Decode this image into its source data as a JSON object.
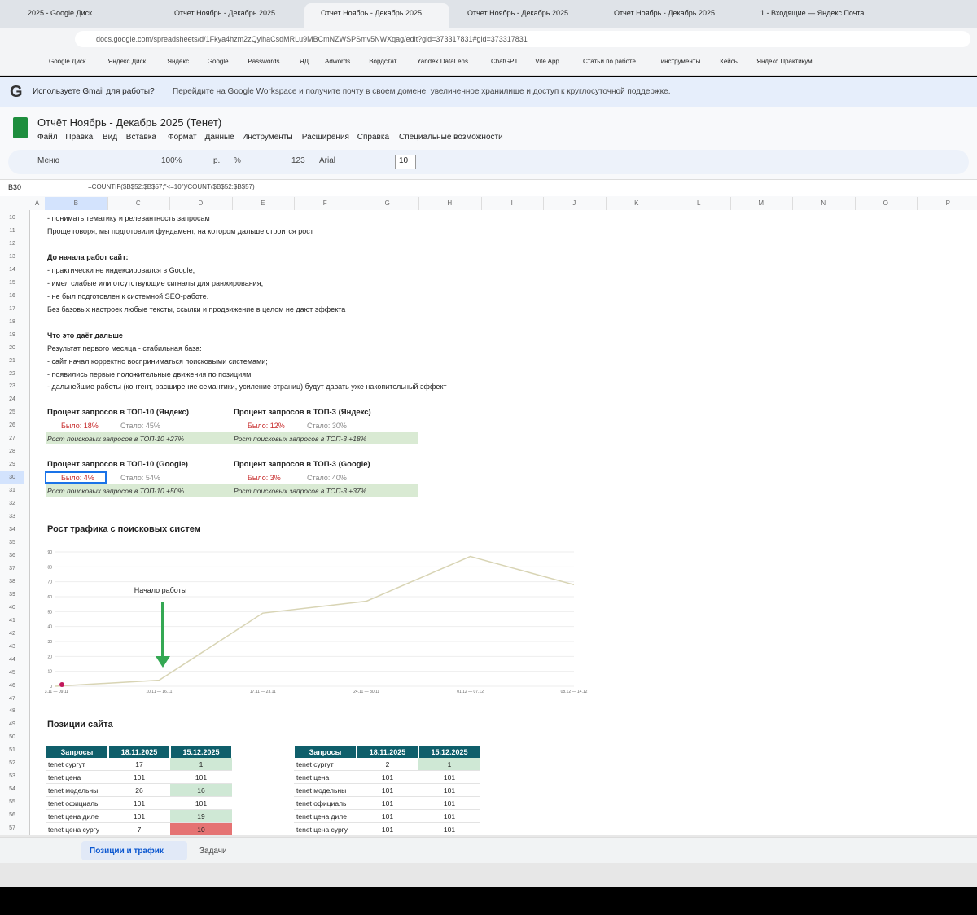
{
  "browser": {
    "tabs": [
      "2025 - Google Диск",
      "Отчет Ноябрь - Декабрь 2025",
      "Отчет Ноябрь - Декабрь 2025",
      "Отчет Ноябрь - Декабрь 2025",
      "Отчет Ноябрь - Декабрь 2025",
      "1 - Входящие — Яндекс Почта"
    ],
    "url": "docs.google.com/spreadsheets/d/1Fkya4hzm2zQyihaCsdMRLu9MBCmNZWSPSmv5NWXqag/edit?gid=373317831#gid=373317831",
    "bookmarks": [
      "Google Диск",
      "Яндекс Диск",
      "Яндекс",
      "Google",
      "Passwords",
      "ЯД",
      "Adwords",
      "Вордстат",
      "Yandex DataLens",
      "ChatGPT",
      "Vite App",
      "Статьи по работе",
      "инструменты",
      "Кейсы",
      "Яндекс Практикум"
    ]
  },
  "banner": {
    "lead": "Используете Gmail для работы?",
    "text": "Перейдите на Google Workspace и получите почту в своем домене, увеличенное хранилище и доступ к круглосуточной поддержке."
  },
  "doc": {
    "title": "Отчёт Ноябрь - Декабрь 2025 (Тенет)",
    "menu": [
      "Файл",
      "Правка",
      "Вид",
      "Вставка",
      "Формат",
      "Данные",
      "Инструменты",
      "Расширения",
      "Справка",
      "Специальные возможности"
    ],
    "toolbar": {
      "search": "Меню",
      "zoom": "100%",
      "currency": "р.",
      "percent": "%",
      "format": "123",
      "font": "Arial",
      "size": "10"
    },
    "cell_ref": "B30",
    "formula": "=COUNTIF($B$52:$B$57;\"<=10\")/COUNT($B$52:$B$57)"
  },
  "sheet": {
    "columns": [
      "A",
      "B",
      "C",
      "D",
      "E",
      "F",
      "G",
      "H",
      "I",
      "J",
      "K",
      "L",
      "M",
      "N",
      "O",
      "P"
    ],
    "row_numbers": [
      10,
      11,
      12,
      13,
      14,
      15,
      16,
      17,
      18,
      19,
      20,
      21,
      22,
      23,
      24,
      25,
      26,
      27,
      28,
      29,
      30,
      31,
      32,
      33,
      34,
      35,
      36,
      37,
      38,
      39,
      40,
      41,
      42,
      43,
      44,
      45,
      46,
      47,
      48,
      49,
      50,
      51,
      52,
      53,
      54,
      55,
      56,
      57
    ],
    "lines": [
      {
        "row": 10,
        "text": "- понимать тематику и релевантность запросам"
      },
      {
        "row": 11,
        "text": "Проще говоря, мы подготовили фундамент, на котором дальше строится рост"
      },
      {
        "row": 13,
        "text": "До начала работ сайт:"
      },
      {
        "row": 14,
        "text": "- практически не индексировался в Google,"
      },
      {
        "row": 15,
        "text": "- имел слабые или отсутствующие сигналы для ранжирования,"
      },
      {
        "row": 16,
        "text": "- не был подготовлен к системной SEO-работе."
      },
      {
        "row": 17,
        "text": "Без базовых настроек любые тексты, ссылки и продвижение в целом не дают эффекта"
      },
      {
        "row": 19,
        "text": "Что это даёт дальше"
      },
      {
        "row": 20,
        "text": "Результат первого месяца - стабильная база:"
      },
      {
        "row": 21,
        "text": "- сайт начал корректно восприниматься поисковыми системами;"
      },
      {
        "row": 22,
        "text": "- появились первые положительные движения по позициям;"
      },
      {
        "row": 23,
        "text": "- дальнейшие работы (контент, расширение семантики, усиление страниц) будут давать уже накопительный эффект"
      }
    ],
    "metrics": [
      {
        "title": "Процент запросов в ТОП-10 (Яндекс)",
        "before": "Было: 18%",
        "after": "Стало: 45%",
        "growth": "Рост поисковых запросов в ТОП-10 +27%"
      },
      {
        "title": "Процент запросов в ТОП-3 (Яндекс)",
        "before": "Было: 12%",
        "after": "Стало: 30%",
        "growth": "Рост поисковых запросов в ТОП-3 +18%"
      },
      {
        "title": "Процент запросов в ТОП-10 (Google)",
        "before": "Было: 4%",
        "after": "Стало: 54%",
        "growth": "Рост поисковых запросов в ТОП-10 +50%"
      },
      {
        "title": "Процент запросов в ТОП-3 (Google)",
        "before": "Было: 3%",
        "after": "Стало: 40%",
        "growth": "Рост поисковых запросов в ТОП-3 +37%"
      }
    ],
    "positions_title": "Позиции сайта",
    "tables": [
      {
        "header": [
          "Запросы",
          "18.11.2025",
          "15.12.2025"
        ],
        "rows": [
          [
            "tenet сургут",
            17,
            1
          ],
          [
            "tenet цена",
            101,
            101
          ],
          [
            "tenet модельны",
            26,
            16
          ],
          [
            "tenet официаль",
            101,
            101
          ],
          [
            "tenet цена диле",
            101,
            19
          ],
          [
            "tenet цена сургу",
            7,
            10
          ]
        ]
      },
      {
        "header": [
          "Запросы",
          "18.11.2025",
          "15.12.2025"
        ],
        "rows": [
          [
            "tenet сургут",
            2,
            1
          ],
          [
            "tenet цена",
            101,
            101
          ],
          [
            "tenet модельны",
            101,
            101
          ],
          [
            "tenet официаль",
            101,
            101
          ],
          [
            "tenet цена диле",
            101,
            101
          ],
          [
            "tenet цена сургу",
            101,
            101
          ]
        ]
      }
    ],
    "sheet_tabs": [
      "Позиции и трафик",
      "Задачи"
    ]
  },
  "chart_data": {
    "type": "line",
    "title": "Рост трафика с поисковых систем",
    "annotation": "Начало работы",
    "categories": [
      "03.11 — 09.11",
      "10.11 — 16.11",
      "17.11 — 23.11",
      "24.11 — 30.11",
      "01.12 — 07.12",
      "08.12 — 14.12"
    ],
    "values": [
      0,
      4,
      49,
      57,
      87,
      68
    ],
    "color": "#d8d4b4",
    "ylim": [
      0,
      90
    ],
    "yticks": [
      0,
      10,
      20,
      30,
      40,
      50,
      60,
      70,
      80,
      90
    ],
    "grid": true
  }
}
